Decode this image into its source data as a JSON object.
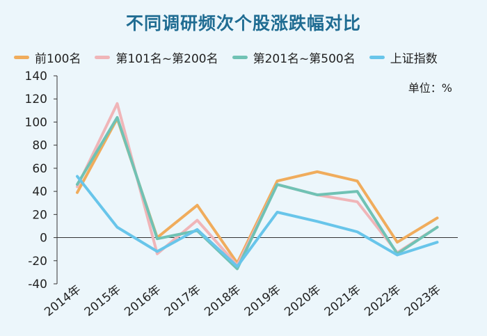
{
  "chart_data": {
    "type": "line",
    "title": "不同调研频次个股涨跌幅对比",
    "unit_label": "单位：%",
    "categories": [
      "2014年",
      "2015年",
      "2016年",
      "2017年",
      "2018年",
      "2019年",
      "2020年",
      "2021年",
      "2022年",
      "2023年"
    ],
    "ylim": [
      -40,
      140
    ],
    "yticks": [
      -40,
      -20,
      0,
      20,
      40,
      60,
      80,
      100,
      120,
      140
    ],
    "grid": false,
    "legend_position": "top",
    "series": [
      {
        "name": "前100名",
        "color": "#f0ac5c",
        "values": [
          39,
          103,
          0,
          28,
          -22,
          49,
          57,
          49,
          -4,
          17
        ]
      },
      {
        "name": "第101名~第200名",
        "color": "#f0b5b8",
        "values": [
          44,
          116,
          -14,
          15,
          -24,
          46,
          37,
          31,
          -13,
          9
        ]
      },
      {
        "name": "第201名~第500名",
        "color": "#70c2b4",
        "values": [
          46,
          104,
          -1,
          6,
          -27,
          46,
          37,
          40,
          -14,
          9
        ]
      },
      {
        "name": "上证指数",
        "color": "#68c5ea",
        "values": [
          53,
          9,
          -12,
          7,
          -25,
          22,
          14,
          5,
          -15,
          -4
        ]
      }
    ]
  }
}
